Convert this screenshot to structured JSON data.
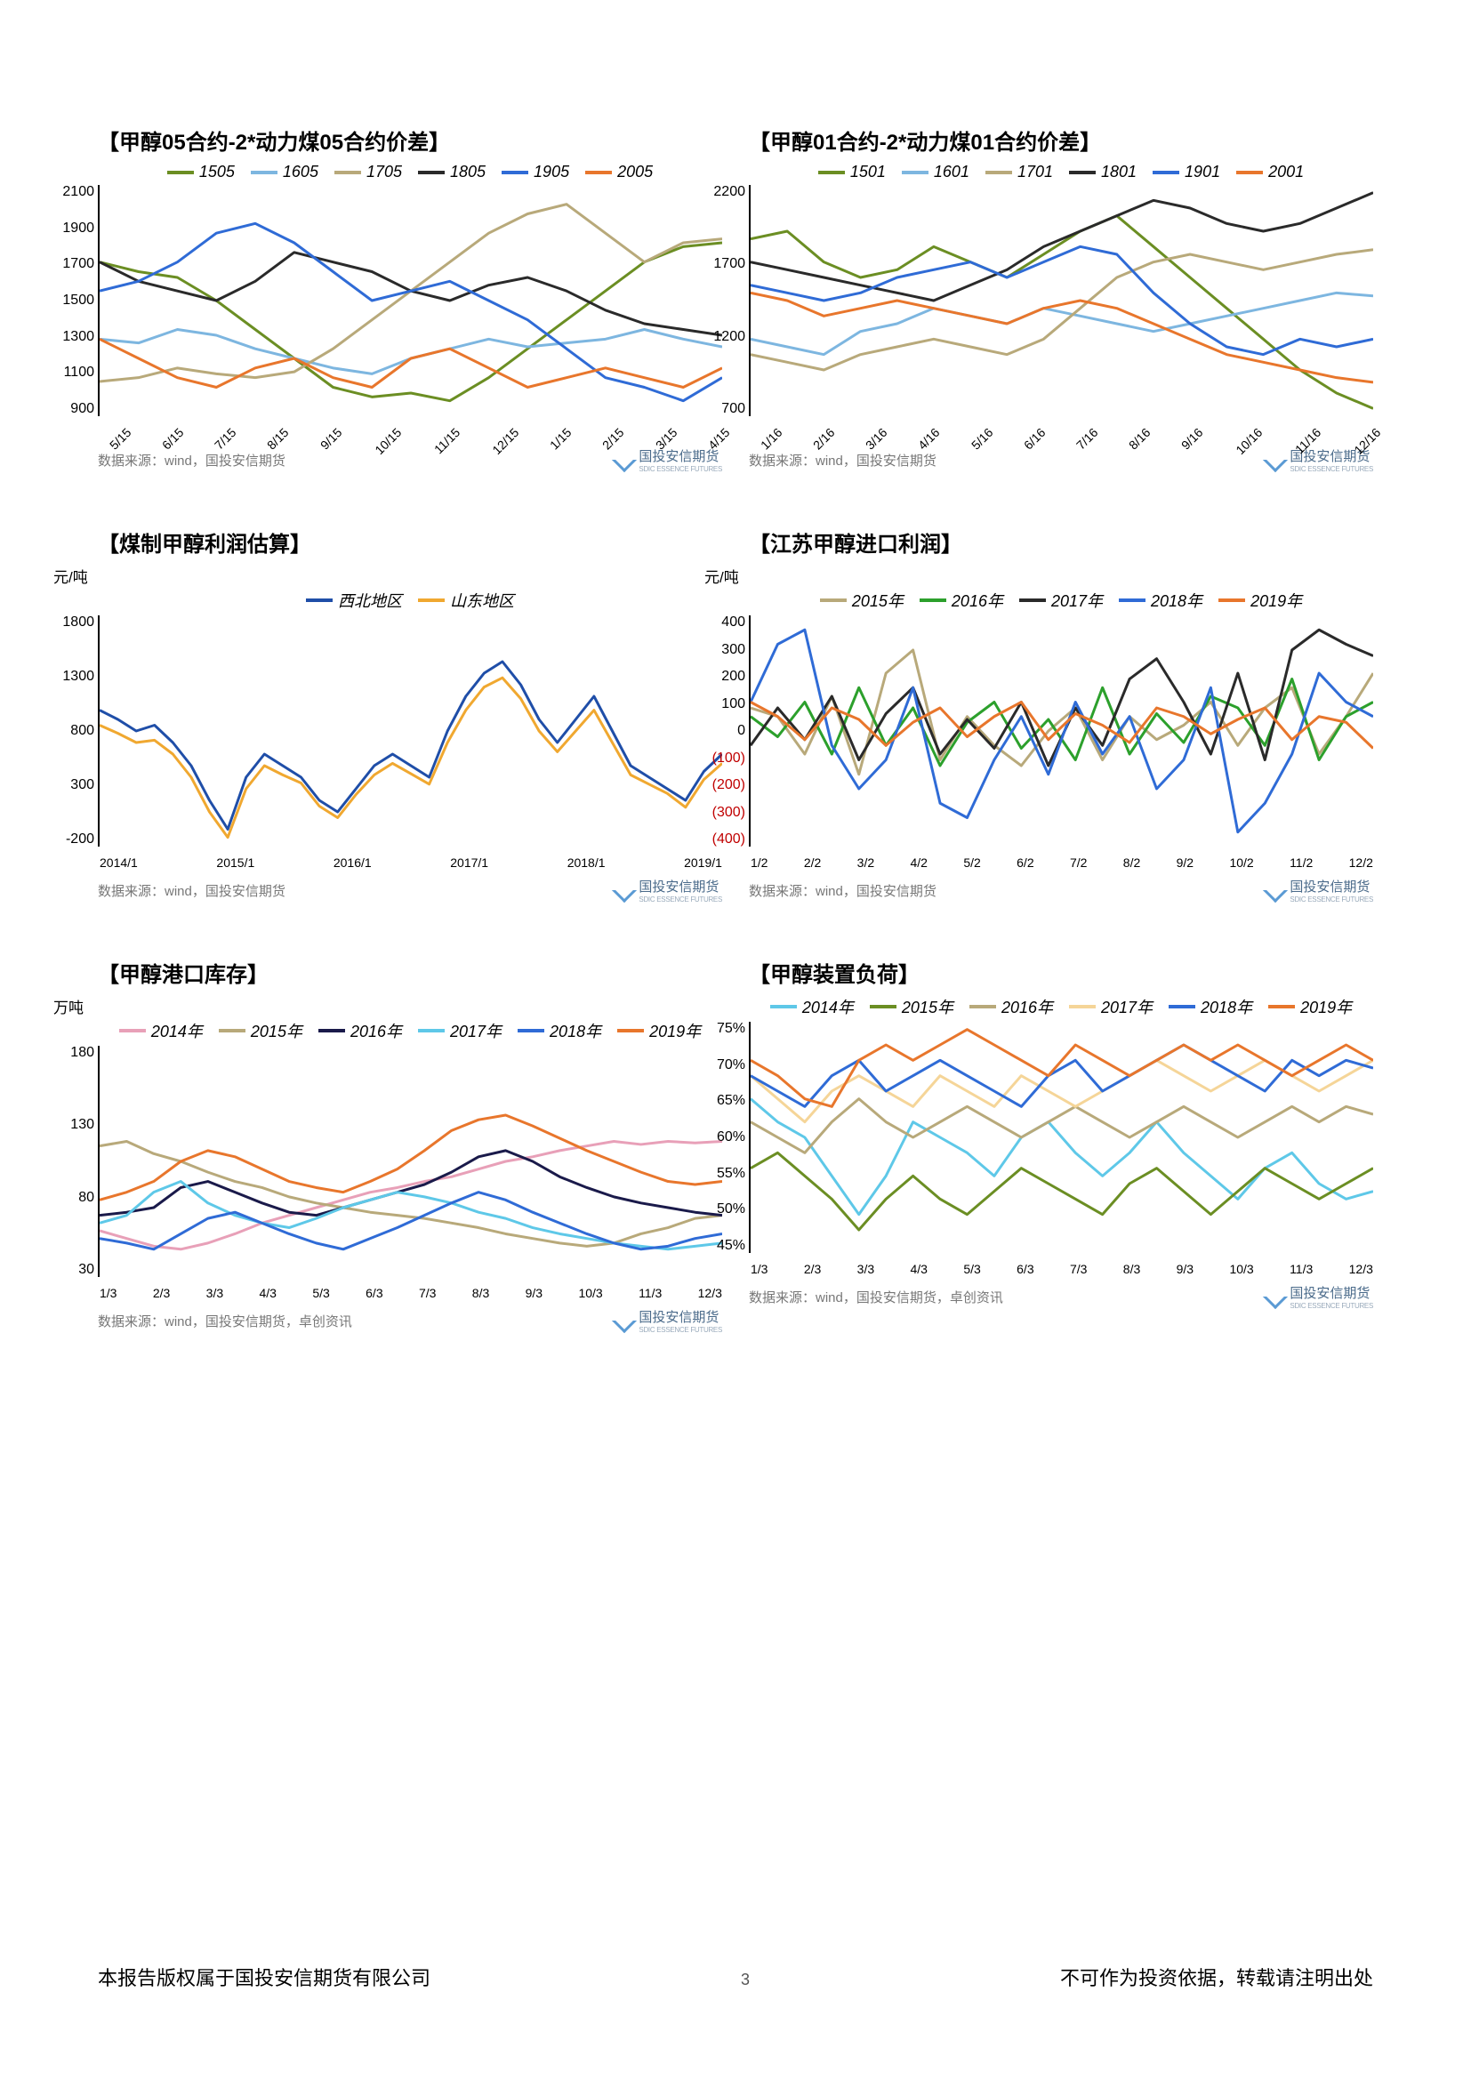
{
  "charts": [
    {
      "title": "【甲醇05合约-2*动力煤05合约价差】",
      "unit": "",
      "ylim": [
        900,
        2100
      ],
      "yticks": [
        "2100",
        "1900",
        "1700",
        "1500",
        "1300",
        "1100",
        "900"
      ],
      "xticks": [
        "5/15",
        "6/15",
        "7/15",
        "8/15",
        "9/15",
        "10/15",
        "11/15",
        "12/15",
        "1/15",
        "2/15",
        "3/15",
        "4/15"
      ],
      "xrot": true,
      "series": [
        {
          "name": "1505",
          "color": "#6b8e23",
          "values": [
            1700,
            1650,
            1620,
            1500,
            1350,
            1200,
            1050,
            1000,
            1020,
            980,
            1100,
            1250,
            1400,
            1550,
            1700,
            1780,
            1800
          ]
        },
        {
          "name": "1605",
          "color": "#7db6e0",
          "values": [
            1300,
            1280,
            1350,
            1320,
            1250,
            1200,
            1150,
            1120,
            1200,
            1250,
            1300,
            1260,
            1280,
            1300,
            1350,
            1300,
            1260
          ]
        },
        {
          "name": "1705",
          "color": "#b8a97a",
          "values": [
            1080,
            1100,
            1150,
            1120,
            1100,
            1130,
            1250,
            1400,
            1550,
            1700,
            1850,
            1950,
            2000,
            1850,
            1700,
            1800,
            1820
          ]
        },
        {
          "name": "1805",
          "color": "#2a2a2a",
          "values": [
            1700,
            1600,
            1550,
            1500,
            1600,
            1750,
            1700,
            1650,
            1550,
            1500,
            1580,
            1620,
            1550,
            1450,
            1380,
            1350,
            1320
          ]
        },
        {
          "name": "1905",
          "color": "#2f6bd6",
          "values": [
            1550,
            1600,
            1700,
            1850,
            1900,
            1800,
            1650,
            1500,
            1550,
            1600,
            1500,
            1400,
            1250,
            1100,
            1050,
            980,
            1100
          ]
        },
        {
          "name": "2005",
          "color": "#e8762c",
          "values": [
            1300,
            1200,
            1100,
            1050,
            1150,
            1200,
            1100,
            1050,
            1200,
            1250,
            1150,
            1050,
            1100,
            1150,
            1100,
            1050,
            1150
          ]
        }
      ],
      "source": "数据来源：wind，国投安信期货"
    },
    {
      "title": "【甲醇01合约-2*动力煤01合约价差】",
      "unit": "",
      "ylim": [
        700,
        2200
      ],
      "yticks": [
        "2200",
        "1700",
        "1200",
        "700"
      ],
      "xticks": [
        "1/16",
        "2/16",
        "3/16",
        "4/16",
        "5/16",
        "6/16",
        "7/16",
        "8/16",
        "9/16",
        "10/16",
        "11/16",
        "12/16"
      ],
      "xrot": true,
      "series": [
        {
          "name": "1501",
          "color": "#6b8e23",
          "values": [
            1850,
            1900,
            1700,
            1600,
            1650,
            1800,
            1700,
            1600,
            1750,
            1900,
            2000,
            1800,
            1600,
            1400,
            1200,
            1000,
            850,
            750
          ]
        },
        {
          "name": "1601",
          "color": "#7db6e0",
          "values": [
            1200,
            1150,
            1100,
            1250,
            1300,
            1400,
            1350,
            1300,
            1400,
            1350,
            1300,
            1250,
            1300,
            1350,
            1400,
            1450,
            1500,
            1480
          ]
        },
        {
          "name": "1701",
          "color": "#b8a97a",
          "values": [
            1100,
            1050,
            1000,
            1100,
            1150,
            1200,
            1150,
            1100,
            1200,
            1400,
            1600,
            1700,
            1750,
            1700,
            1650,
            1700,
            1750,
            1780
          ]
        },
        {
          "name": "1801",
          "color": "#2a2a2a",
          "values": [
            1700,
            1650,
            1600,
            1550,
            1500,
            1450,
            1550,
            1650,
            1800,
            1900,
            2000,
            2100,
            2050,
            1950,
            1900,
            1950,
            2050,
            2150
          ]
        },
        {
          "name": "1901",
          "color": "#2f6bd6",
          "values": [
            1550,
            1500,
            1450,
            1500,
            1600,
            1650,
            1700,
            1600,
            1700,
            1800,
            1750,
            1500,
            1300,
            1150,
            1100,
            1200,
            1150,
            1200
          ]
        },
        {
          "name": "2001",
          "color": "#e8762c",
          "values": [
            1500,
            1450,
            1350,
            1400,
            1450,
            1400,
            1350,
            1300,
            1400,
            1450,
            1400,
            1300,
            1200,
            1100,
            1050,
            1000,
            950,
            920
          ]
        }
      ],
      "source": "数据来源：wind，国投安信期货"
    },
    {
      "title": "【煤制甲醇利润估算】",
      "unit": "元/吨",
      "ylim": [
        -200,
        1800
      ],
      "yticks": [
        "1800",
        "1300",
        "800",
        "300",
        "-200"
      ],
      "xticks": [
        "2014/1",
        "2015/1",
        "2016/1",
        "2017/1",
        "2018/1",
        "2019/1"
      ],
      "xrot": false,
      "series": [
        {
          "name": "西北地区",
          "color": "#1f4ea8",
          "values": [
            980,
            900,
            800,
            850,
            700,
            500,
            200,
            -50,
            400,
            600,
            500,
            400,
            200,
            100,
            300,
            500,
            600,
            500,
            400,
            800,
            1100,
            1300,
            1400,
            1200,
            900,
            700,
            900,
            1100,
            800,
            500,
            400,
            300,
            200,
            450,
            600
          ]
        },
        {
          "name": "山东地区",
          "color": "#f0a830",
          "values": [
            850,
            780,
            700,
            720,
            600,
            400,
            100,
            -120,
            300,
            500,
            420,
            350,
            150,
            50,
            250,
            420,
            520,
            430,
            340,
            700,
            980,
            1180,
            1260,
            1080,
            800,
            620,
            800,
            980,
            700,
            420,
            340,
            260,
            140,
            380,
            520
          ]
        }
      ],
      "source": "数据来源：wind，国投安信期货"
    },
    {
      "title": "【江苏甲醇进口利润】",
      "unit": "元/吨",
      "ylim": [
        -400,
        400
      ],
      "yticks": [
        "400",
        "300",
        "200",
        "100",
        "0",
        "(100)",
        "(200)",
        "(300)",
        "(400)"
      ],
      "yneg_from": 5,
      "xticks": [
        "1/2",
        "2/2",
        "3/2",
        "4/2",
        "5/2",
        "6/2",
        "7/2",
        "8/2",
        "9/2",
        "10/2",
        "11/2",
        "12/2"
      ],
      "xrot": false,
      "series": [
        {
          "name": "2015年",
          "color": "#b8a97a",
          "values": [
            80,
            50,
            -80,
            120,
            -150,
            200,
            280,
            -100,
            50,
            -50,
            -120,
            0,
            80,
            -100,
            50,
            -30,
            20,
            100,
            -50,
            80,
            150,
            -80,
            50,
            200
          ]
        },
        {
          "name": "2016年",
          "color": "#2ca02c",
          "values": [
            50,
            -20,
            100,
            -80,
            150,
            -50,
            80,
            -120,
            30,
            100,
            -60,
            40,
            -100,
            150,
            -80,
            60,
            -40,
            120,
            80,
            -50,
            180,
            -100,
            50,
            100
          ]
        },
        {
          "name": "2017年",
          "color": "#2a2a2a",
          "values": [
            -50,
            80,
            -30,
            120,
            -100,
            60,
            150,
            -80,
            40,
            -60,
            100,
            -120,
            80,
            -50,
            180,
            250,
            100,
            -80,
            200,
            -100,
            280,
            350,
            300,
            260
          ]
        },
        {
          "name": "2018年",
          "color": "#2f6bd6",
          "values": [
            100,
            300,
            350,
            -50,
            -200,
            -100,
            150,
            -250,
            -300,
            -100,
            50,
            -150,
            100,
            -80,
            50,
            -200,
            -100,
            150,
            -350,
            -250,
            -80,
            200,
            100,
            50
          ]
        },
        {
          "name": "2019年",
          "color": "#e8762c",
          "values": [
            100,
            50,
            -30,
            80,
            40,
            -50,
            30,
            80,
            -20,
            50,
            100,
            -30,
            60,
            20,
            -40,
            80,
            50,
            -10,
            40,
            80,
            -30,
            50,
            30,
            -60
          ]
        }
      ],
      "source": "数据来源：wind，国投安信期货"
    },
    {
      "title": "【甲醇港口库存】",
      "unit": "万吨",
      "ylim": [
        30,
        180
      ],
      "yticks": [
        "180",
        "130",
        "80",
        "30"
      ],
      "xticks": [
        "1/3",
        "2/3",
        "3/3",
        "4/3",
        "5/3",
        "6/3",
        "7/3",
        "8/3",
        "9/3",
        "10/3",
        "11/3",
        "12/3"
      ],
      "xrot": false,
      "series": [
        {
          "name": "2014年",
          "color": "#e8a0b8",
          "values": [
            60,
            55,
            50,
            48,
            52,
            58,
            65,
            70,
            75,
            80,
            85,
            88,
            92,
            95,
            100,
            105,
            108,
            112,
            115,
            118,
            116,
            118,
            117,
            118
          ]
        },
        {
          "name": "2015年",
          "color": "#b8a97a",
          "values": [
            115,
            118,
            110,
            105,
            98,
            92,
            88,
            82,
            78,
            75,
            72,
            70,
            68,
            65,
            62,
            58,
            55,
            52,
            50,
            52,
            58,
            62,
            68,
            70
          ]
        },
        {
          "name": "2016年",
          "color": "#1a1a4a",
          "values": [
            70,
            72,
            75,
            88,
            92,
            85,
            78,
            72,
            70,
            75,
            80,
            85,
            90,
            98,
            108,
            112,
            105,
            95,
            88,
            82,
            78,
            75,
            72,
            70
          ]
        },
        {
          "name": "2017年",
          "color": "#5ec8e8",
          "values": [
            65,
            70,
            85,
            92,
            78,
            70,
            65,
            62,
            68,
            75,
            80,
            85,
            82,
            78,
            72,
            68,
            62,
            58,
            55,
            52,
            50,
            48,
            50,
            52
          ]
        },
        {
          "name": "2018年",
          "color": "#2f6bd6",
          "values": [
            55,
            52,
            48,
            58,
            68,
            72,
            65,
            58,
            52,
            48,
            55,
            62,
            70,
            78,
            85,
            80,
            72,
            65,
            58,
            52,
            48,
            50,
            55,
            58
          ]
        },
        {
          "name": "2019年",
          "color": "#e8762c",
          "values": [
            80,
            85,
            92,
            105,
            112,
            108,
            100,
            92,
            88,
            85,
            92,
            100,
            112,
            125,
            132,
            135,
            128,
            120,
            112,
            105,
            98,
            92,
            90,
            92
          ]
        }
      ],
      "source": "数据来源：wind，国投安信期货，卓创资讯"
    },
    {
      "title": "【甲醇装置负荷】",
      "unit": "",
      "ylim": [
        45,
        75
      ],
      "yticks": [
        "75%",
        "70%",
        "65%",
        "60%",
        "55%",
        "50%",
        "45%"
      ],
      "xticks": [
        "1/3",
        "2/3",
        "3/3",
        "4/3",
        "5/3",
        "6/3",
        "7/3",
        "8/3",
        "9/3",
        "10/3",
        "11/3",
        "12/3"
      ],
      "xrot": false,
      "series": [
        {
          "name": "2014年",
          "color": "#5ec8e8",
          "values": [
            65,
            62,
            60,
            55,
            50,
            55,
            62,
            60,
            58,
            55,
            60,
            62,
            58,
            55,
            58,
            62,
            58,
            55,
            52,
            56,
            58,
            54,
            52,
            53
          ]
        },
        {
          "name": "2015年",
          "color": "#6b8e23",
          "values": [
            56,
            58,
            55,
            52,
            48,
            52,
            55,
            52,
            50,
            53,
            56,
            54,
            52,
            50,
            54,
            56,
            53,
            50,
            53,
            56,
            54,
            52,
            54,
            56
          ]
        },
        {
          "name": "2016年",
          "color": "#b8a97a",
          "values": [
            62,
            60,
            58,
            62,
            65,
            62,
            60,
            62,
            64,
            62,
            60,
            62,
            64,
            62,
            60,
            62,
            64,
            62,
            60,
            62,
            64,
            62,
            64,
            63
          ]
        },
        {
          "name": "2017年",
          "color": "#f5d598",
          "values": [
            68,
            65,
            62,
            66,
            68,
            66,
            64,
            68,
            66,
            64,
            68,
            66,
            64,
            66,
            68,
            70,
            68,
            66,
            68,
            70,
            68,
            66,
            68,
            70
          ]
        },
        {
          "name": "2018年",
          "color": "#2f6bd6",
          "values": [
            68,
            66,
            64,
            68,
            70,
            66,
            68,
            70,
            68,
            66,
            64,
            68,
            70,
            66,
            68,
            70,
            72,
            70,
            68,
            66,
            70,
            68,
            70,
            69
          ]
        },
        {
          "name": "2019年",
          "color": "#e8762c",
          "values": [
            70,
            68,
            65,
            64,
            70,
            72,
            70,
            72,
            74,
            72,
            70,
            68,
            72,
            70,
            68,
            70,
            72,
            70,
            72,
            70,
            68,
            70,
            72,
            70
          ]
        }
      ],
      "source": "数据来源：wind，国投安信期货，卓创资讯"
    }
  ],
  "logo_text": "国投安信期货",
  "logo_sub": "SDIC ESSENCE FUTURES",
  "footer_left": "本报告版权属于国投安信期货有限公司",
  "footer_right": "不可作为投资依据，转载请注明出处",
  "page_number": "3"
}
